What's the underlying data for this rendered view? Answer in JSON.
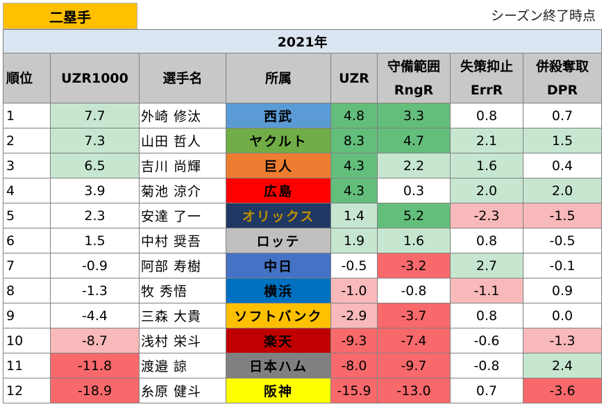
{
  "header": {
    "position": "二塁手",
    "period": "シーズン終了時点"
  },
  "table": {
    "year": "2021年",
    "columns": [
      {
        "line1": "順位",
        "line2": ""
      },
      {
        "line1": "UZR1000",
        "line2": ""
      },
      {
        "line1": "選手名",
        "line2": ""
      },
      {
        "line1": "所属",
        "line2": ""
      },
      {
        "line1": "UZR",
        "line2": ""
      },
      {
        "line1": "守備範囲",
        "line2": "RngR"
      },
      {
        "line1": "失策抑止",
        "line2": "ErrR"
      },
      {
        "line1": "併殺奪取",
        "line2": "DPR"
      }
    ],
    "rows": [
      {
        "rank": "1",
        "uzr1000": "7.7",
        "name": "外崎 修汰",
        "team": "西武",
        "uzr": "4.8",
        "rngr": "3.3",
        "errr": "0.8",
        "dpr": "0.7"
      },
      {
        "rank": "2",
        "uzr1000": "7.3",
        "name": "山田 哲人",
        "team": "ヤクルト",
        "uzr": "8.3",
        "rngr": "4.7",
        "errr": "2.1",
        "dpr": "1.5"
      },
      {
        "rank": "3",
        "uzr1000": "6.5",
        "name": "吉川 尚輝",
        "team": "巨人",
        "uzr": "4.3",
        "rngr": "2.2",
        "errr": "1.6",
        "dpr": "0.4"
      },
      {
        "rank": "4",
        "uzr1000": "3.9",
        "name": "菊池 涼介",
        "team": "広島",
        "uzr": "4.3",
        "rngr": "0.3",
        "errr": "2.0",
        "dpr": "2.0"
      },
      {
        "rank": "5",
        "uzr1000": "2.3",
        "name": "安達 了一",
        "team": "オリックス",
        "uzr": "1.4",
        "rngr": "5.2",
        "errr": "-2.3",
        "dpr": "-1.5"
      },
      {
        "rank": "6",
        "uzr1000": "1.5",
        "name": "中村 奨吾",
        "team": "ロッテ",
        "uzr": "1.9",
        "rngr": "1.6",
        "errr": "0.8",
        "dpr": "-0.5"
      },
      {
        "rank": "7",
        "uzr1000": "-0.9",
        "name": "阿部 寿樹",
        "team": "中日",
        "uzr": "-0.5",
        "rngr": "-3.2",
        "errr": "2.7",
        "dpr": "-0.1"
      },
      {
        "rank": "8",
        "uzr1000": "-1.3",
        "name": "牧 秀悟",
        "team": "横浜",
        "uzr": "-1.0",
        "rngr": "-0.8",
        "errr": "-1.1",
        "dpr": "0.9"
      },
      {
        "rank": "9",
        "uzr1000": "-4.4",
        "name": "三森 大貴",
        "team": "ソフトバンク",
        "uzr": "-2.9",
        "rngr": "-3.7",
        "errr": "0.8",
        "dpr": "0.0"
      },
      {
        "rank": "10",
        "uzr1000": "-8.7",
        "name": "浅村 栄斗",
        "team": "楽天",
        "uzr": "-9.3",
        "rngr": "-7.4",
        "errr": "-0.6",
        "dpr": "-1.3"
      },
      {
        "rank": "11",
        "uzr1000": "-11.8",
        "name": "渡邉 諒",
        "team": "日本ハム",
        "uzr": "-8.0",
        "rngr": "-9.7",
        "errr": "-0.8",
        "dpr": "2.4"
      },
      {
        "rank": "12",
        "uzr1000": "-18.9",
        "name": "糸原 健斗",
        "team": "阪神",
        "uzr": "-15.9",
        "rngr": "-13.0",
        "errr": "0.7",
        "dpr": "-3.6"
      }
    ]
  },
  "colors": {
    "position_tag": "#ffc000",
    "header_bg": "#c8c8c8",
    "year_bg": "#dbe5f1",
    "pos_light": "#c6e6d0",
    "pos_strong": "#63be7b",
    "neg_light": "#f8b9bb",
    "neg_strong": "#f8696b",
    "teams": {
      "西武": {
        "bg": "#5b9bd5",
        "fg": "#000000"
      },
      "ヤクルト": {
        "bg": "#70ad47",
        "fg": "#000000"
      },
      "巨人": {
        "bg": "#ed7d31",
        "fg": "#000000"
      },
      "広島": {
        "bg": "#ff0000",
        "fg": "#000000"
      },
      "オリックス": {
        "bg": "#1f3864",
        "fg": "#bf9000"
      },
      "ロッテ": {
        "bg": "#bfbfbf",
        "fg": "#000000"
      },
      "中日": {
        "bg": "#4472c4",
        "fg": "#000000"
      },
      "横浜": {
        "bg": "#0070c0",
        "fg": "#000000"
      },
      "ソフトバンク": {
        "bg": "#ffc000",
        "fg": "#000000"
      },
      "楽天": {
        "bg": "#c00000",
        "fg": "#000000"
      },
      "日本ハム": {
        "bg": "#808080",
        "fg": "#000000"
      },
      "阪神": {
        "bg": "#ffff00",
        "fg": "#000000"
      }
    }
  }
}
